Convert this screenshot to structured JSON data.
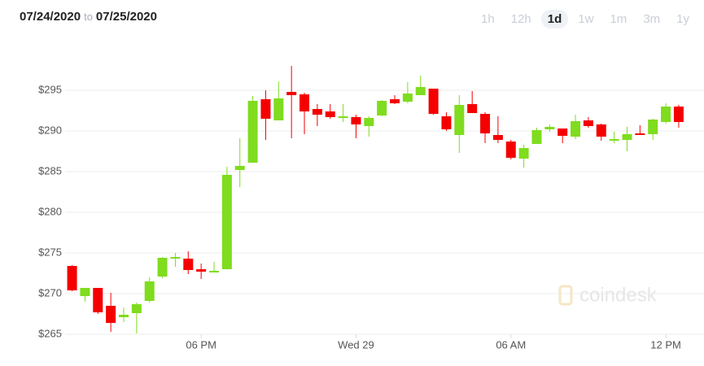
{
  "header": {
    "from": "07/24/2020",
    "to_word": "to",
    "to": "07/25/2020",
    "ranges": [
      "1h",
      "12h",
      "1d",
      "1w",
      "1m",
      "3m",
      "1y"
    ],
    "selected_range": 2
  },
  "chart_data": {
    "type": "candlestick",
    "watermark": "coindesk",
    "up_color": "#7fdc1e",
    "down_color": "#f40000",
    "x": [
      13,
      13.5,
      14,
      14.5,
      15,
      15.5,
      16,
      16.5,
      17,
      17.5,
      18,
      18.5,
      19,
      19.5,
      20,
      20.5,
      21,
      21.5,
      22,
      22.5,
      23,
      23.5,
      24,
      24.5,
      25,
      25.5,
      26,
      26.5,
      27,
      27.5,
      28,
      28.5,
      29,
      29.5,
      30,
      30.5,
      31,
      31.5,
      32,
      32.5,
      33,
      33.5,
      34,
      34.5,
      35,
      35.5,
      36,
      36.5
    ],
    "open": [
      273.4,
      269.7,
      270.7,
      268.5,
      267.1,
      267.6,
      269.1,
      272.1,
      274.3,
      274.3,
      273.0,
      272.6,
      273.0,
      285.2,
      286.1,
      293.9,
      291.3,
      294.8,
      294.5,
      292.7,
      292.4,
      291.6,
      291.7,
      290.6,
      291.9,
      293.9,
      293.6,
      294.4,
      295.2,
      291.8,
      289.5,
      293.3,
      292.1,
      289.5,
      288.7,
      286.6,
      288.4,
      290.2,
      290.3,
      289.3,
      291.3,
      290.8,
      288.8,
      288.9,
      289.7,
      289.6,
      291.1,
      293.0
    ],
    "high": [
      273.5,
      270.7,
      270.7,
      270.1,
      268.3,
      268.9,
      272.0,
      274.5,
      275.0,
      275.2,
      273.7,
      273.9,
      285.6,
      289.1,
      294.3,
      295.0,
      296.1,
      298.0,
      294.7,
      293.3,
      293.3,
      293.3,
      292.0,
      291.8,
      293.8,
      294.4,
      296.0,
      296.8,
      295.2,
      292.3,
      294.4,
      294.9,
      292.3,
      291.8,
      288.9,
      288.3,
      290.4,
      290.8,
      290.3,
      292.0,
      291.7,
      290.9,
      289.9,
      290.5,
      290.7,
      291.5,
      293.4,
      293.2
    ],
    "low": [
      270.3,
      269.0,
      267.5,
      265.3,
      266.5,
      265.1,
      268.9,
      271.9,
      273.3,
      272.4,
      271.8,
      272.6,
      273.0,
      283.1,
      286.1,
      288.9,
      291.3,
      289.1,
      289.6,
      290.6,
      291.5,
      291.1,
      289.1,
      289.3,
      291.8,
      293.3,
      293.4,
      294.4,
      292.0,
      290.0,
      287.3,
      292.2,
      288.5,
      288.5,
      286.5,
      285.5,
      288.4,
      289.9,
      288.5,
      289.0,
      290.4,
      288.8,
      288.5,
      287.5,
      289.5,
      288.9,
      290.9,
      290.4
    ],
    "close": [
      270.4,
      270.7,
      267.7,
      266.4,
      267.4,
      268.7,
      271.5,
      274.4,
      274.5,
      272.9,
      272.7,
      272.8,
      284.6,
      285.7,
      293.7,
      291.5,
      294.0,
      294.4,
      292.4,
      292.0,
      291.7,
      291.8,
      290.8,
      291.6,
      293.7,
      293.4,
      294.6,
      295.4,
      292.1,
      290.2,
      293.2,
      292.2,
      289.7,
      288.9,
      286.7,
      287.9,
      290.1,
      290.5,
      289.4,
      291.2,
      290.6,
      289.3,
      289.0,
      289.6,
      289.5,
      291.4,
      293.0,
      291.1
    ],
    "ylim": [
      263.6,
      301.1
    ],
    "yticks": [
      {
        "value": 265,
        "label": "$265"
      },
      {
        "value": 270,
        "label": "$270"
      },
      {
        "value": 275,
        "label": "$275"
      },
      {
        "value": 280,
        "label": "$280"
      },
      {
        "value": 285,
        "label": "$285"
      },
      {
        "value": 290,
        "label": "$290"
      },
      {
        "value": 295,
        "label": "$295"
      }
    ],
    "xlim": [
      12.73,
      37.48
    ],
    "xticks": [
      {
        "value": 18,
        "label": "06 PM"
      },
      {
        "value": 24,
        "label": "Wed 29"
      },
      {
        "value": 30,
        "label": "06 AM"
      },
      {
        "value": 36,
        "label": "12 PM"
      }
    ],
    "grid": true
  }
}
